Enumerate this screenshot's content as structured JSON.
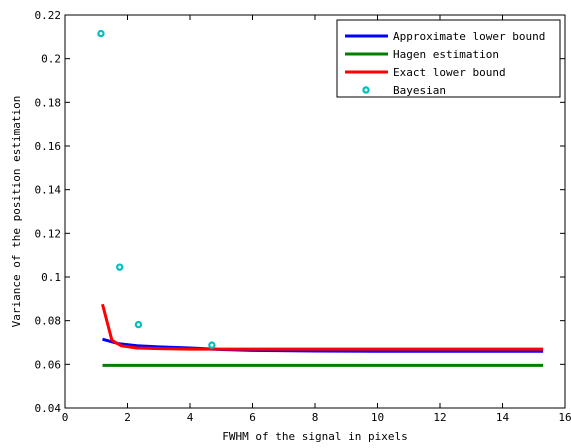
{
  "chart_data": {
    "type": "line",
    "title": "",
    "xlabel": "FWHM  of the signal in pixels",
    "ylabel": "Variance of the position estimation",
    "xlim": [
      0,
      16
    ],
    "ylim": [
      0.04,
      0.22
    ],
    "x_ticks": [
      "0",
      "2",
      "4",
      "6",
      "8",
      "10",
      "12",
      "14",
      "16"
    ],
    "y_ticks": [
      "0.04",
      "0.06",
      "0.08",
      "0.1",
      "0.12",
      "0.14",
      "0.16",
      "0.18",
      "0.2",
      "0.22"
    ],
    "grid": false,
    "legend_position": "top-right",
    "series": [
      {
        "name": "Approximate lower bound",
        "style": "line",
        "color": "#0000ff",
        "x": [
          1.2,
          1.7,
          2.3,
          3,
          4,
          5,
          6,
          8,
          10,
          12,
          14,
          15.3
        ],
        "y": [
          0.0715,
          0.0695,
          0.0685,
          0.068,
          0.0675,
          0.0668,
          0.0664,
          0.0661,
          0.066,
          0.066,
          0.066,
          0.066
        ]
      },
      {
        "name": "Hagen estimation",
        "style": "line",
        "color": "#008000",
        "x": [
          1.2,
          15.3
        ],
        "y": [
          0.0595,
          0.0595
        ]
      },
      {
        "name": "Exact lower bound",
        "style": "line",
        "color": "#ff0000",
        "x": [
          1.2,
          1.5,
          1.8,
          2.3,
          3,
          4,
          5,
          6,
          8,
          10,
          12,
          14,
          15.3
        ],
        "y": [
          0.0875,
          0.071,
          0.0685,
          0.0675,
          0.0672,
          0.067,
          0.067,
          0.067,
          0.067,
          0.067,
          0.067,
          0.067,
          0.067
        ]
      },
      {
        "name": "Bayesian",
        "style": "markers",
        "color": "#00bfbf",
        "x": [
          1.15,
          1.75,
          2.35,
          4.7
        ],
        "y": [
          0.2115,
          0.1045,
          0.0782,
          0.0688
        ]
      }
    ]
  }
}
